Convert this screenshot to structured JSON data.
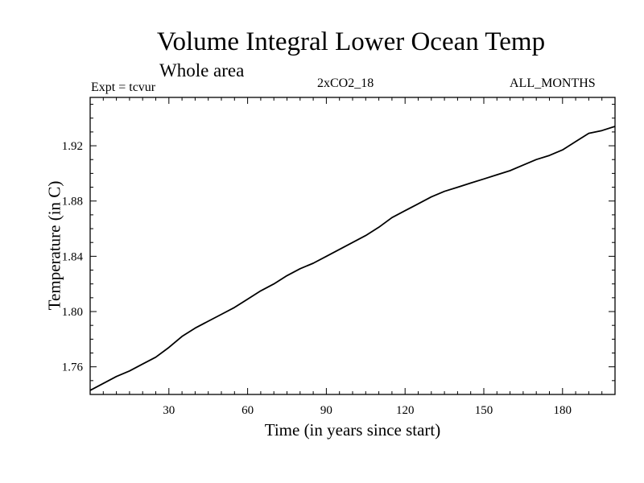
{
  "chart_data": {
    "type": "line",
    "title": "Volume Integral Lower Ocean Temp",
    "subtitle": "Whole area",
    "left_note": "Expt = tcvur",
    "center_note": "2xCO2_18",
    "right_note": "ALL_MONTHS",
    "xlabel": "Time (in years since start)",
    "ylabel": "Temperature (in C)",
    "xlim": [
      0,
      200
    ],
    "ylim": [
      1.74,
      1.955
    ],
    "xticks": [
      30,
      60,
      90,
      120,
      150,
      180
    ],
    "yticks": [
      1.76,
      1.8,
      1.84,
      1.88,
      1.92
    ],
    "ytick_labels": [
      "1.76",
      "1.80",
      "1.84",
      "1.88",
      "1.92"
    ],
    "grid": false,
    "series": [
      {
        "color": "#000000",
        "x": [
          0,
          5,
          10,
          15,
          20,
          25,
          30,
          35,
          40,
          45,
          50,
          55,
          60,
          65,
          70,
          75,
          80,
          85,
          90,
          95,
          100,
          105,
          110,
          115,
          120,
          125,
          130,
          135,
          140,
          145,
          150,
          155,
          160,
          165,
          170,
          175,
          180,
          185,
          190,
          195,
          200
        ],
        "y": [
          1.743,
          1.748,
          1.753,
          1.757,
          1.762,
          1.767,
          1.774,
          1.782,
          1.788,
          1.793,
          1.798,
          1.803,
          1.809,
          1.815,
          1.82,
          1.826,
          1.831,
          1.835,
          1.84,
          1.845,
          1.85,
          1.855,
          1.861,
          1.868,
          1.873,
          1.878,
          1.883,
          1.887,
          1.89,
          1.893,
          1.896,
          1.899,
          1.902,
          1.906,
          1.91,
          1.913,
          1.917,
          1.923,
          1.929,
          1.931,
          1.934
        ]
      }
    ]
  }
}
